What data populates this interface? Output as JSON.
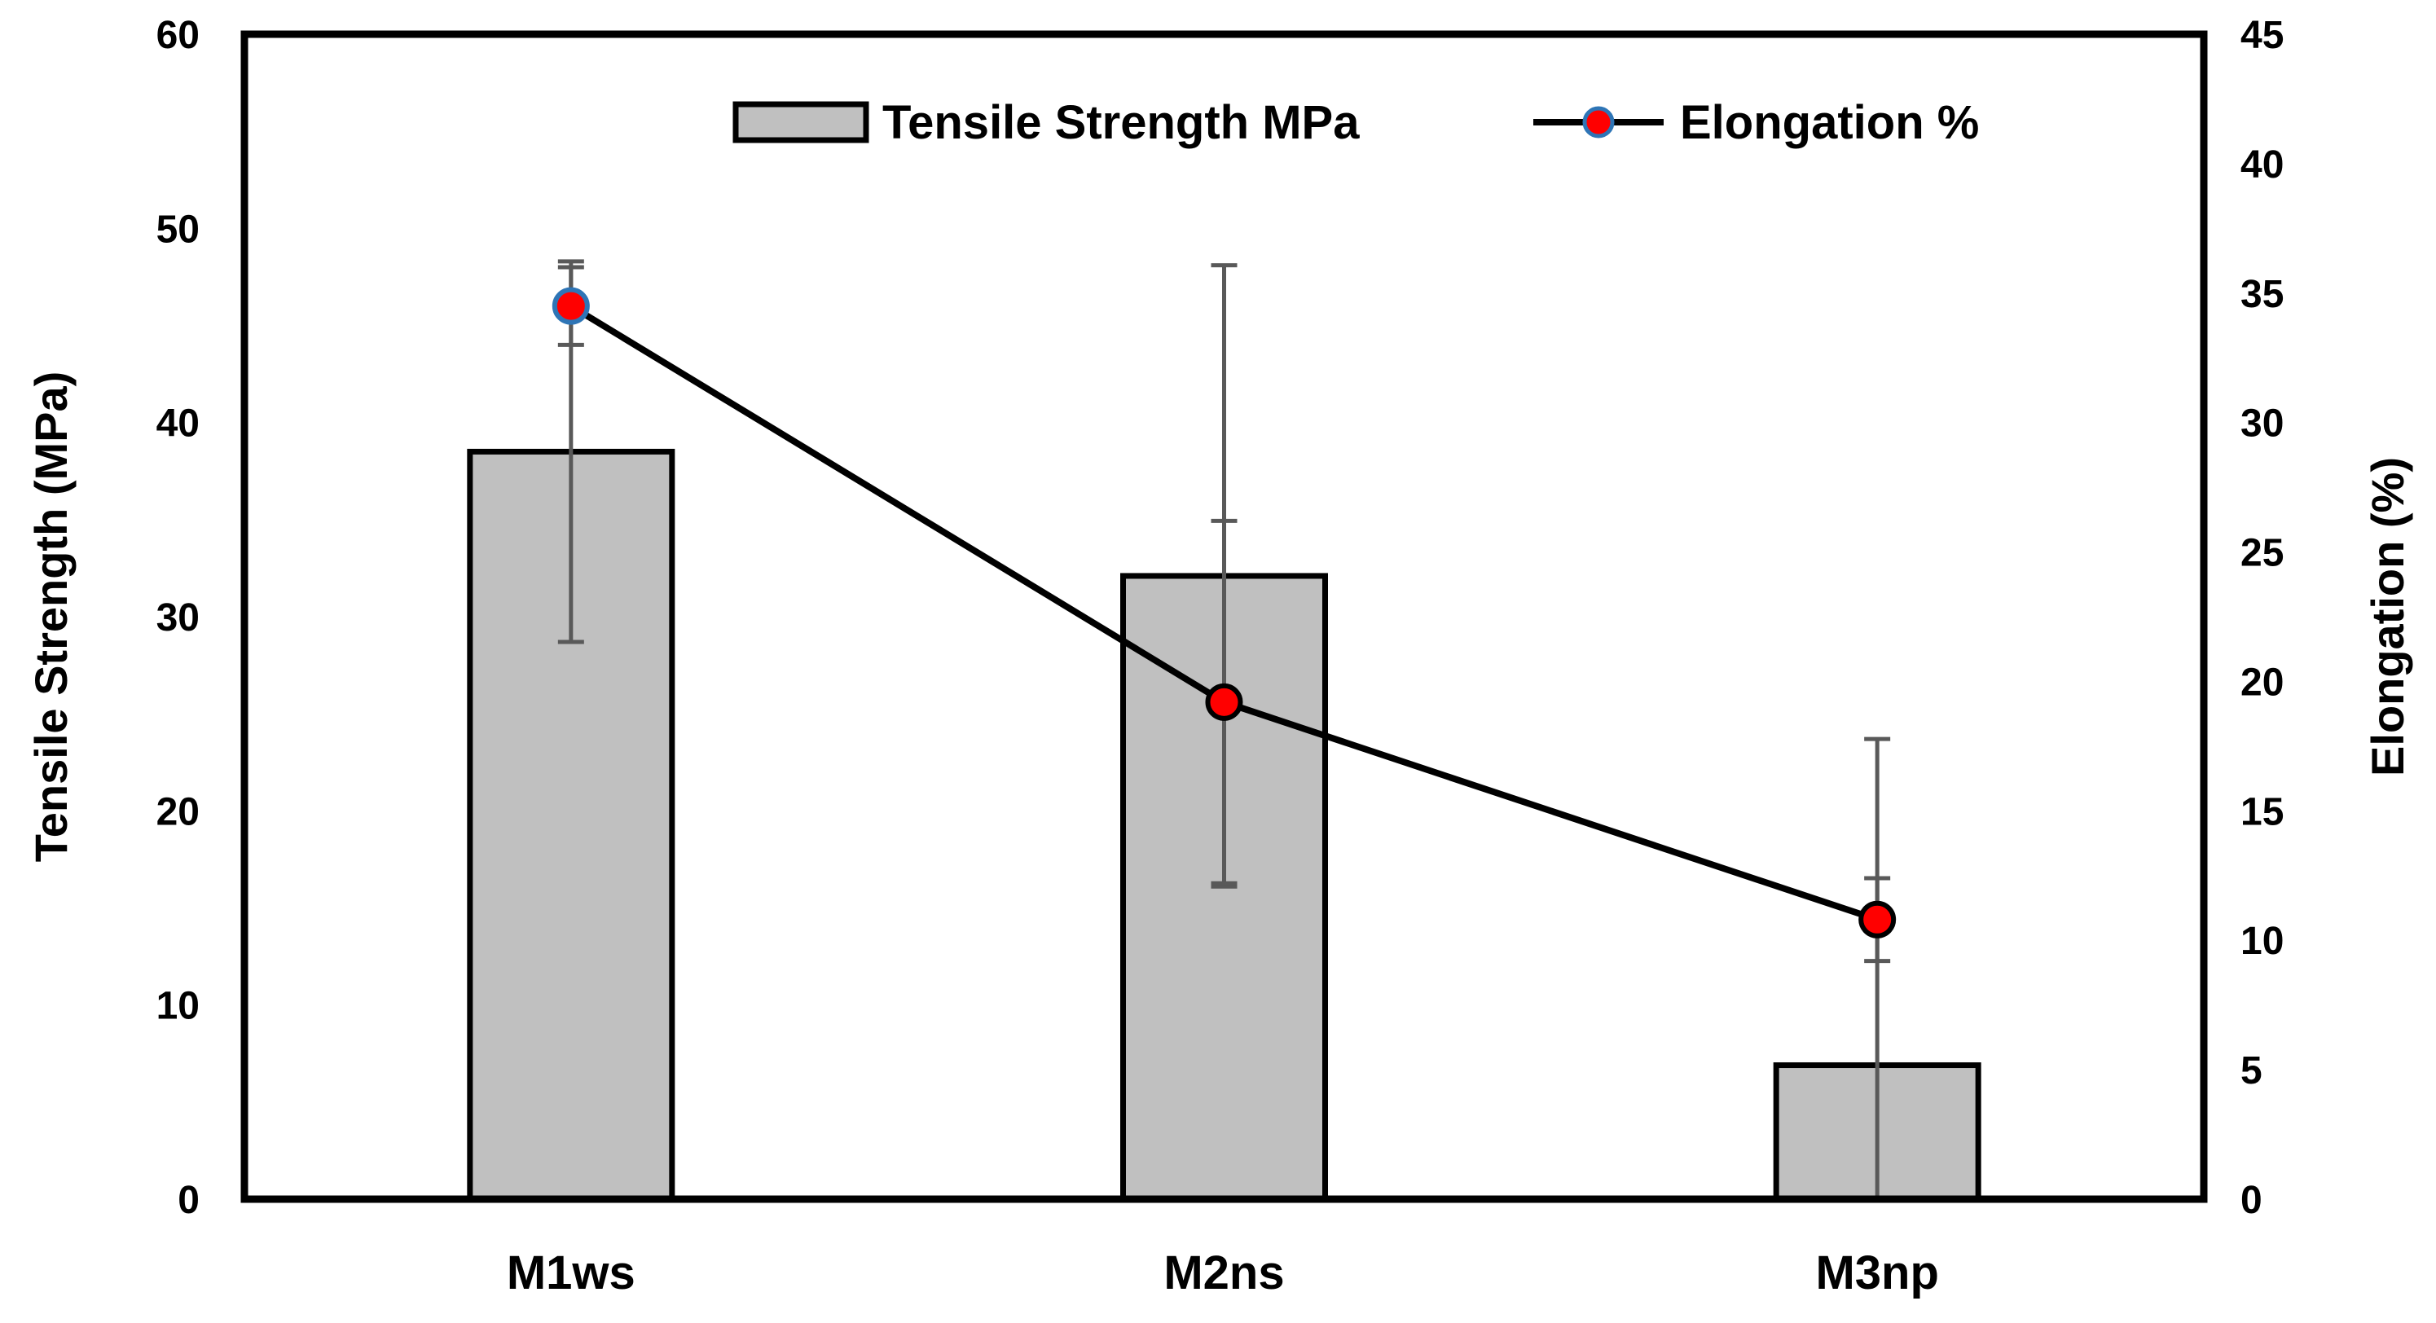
{
  "chart_data": {
    "type": "bar+line",
    "categories": [
      "M1ws",
      "M2ns",
      "M3np"
    ],
    "series": [
      {
        "name": "Tensile Strength MPa",
        "type": "bar",
        "axis": "left",
        "values": [
          38.5,
          32.1,
          6.9
        ],
        "error": [
          9.8,
          16.0,
          16.8
        ],
        "fill": "#c0c0c0",
        "stroke": "#000000"
      },
      {
        "name": "Elongation %",
        "type": "line",
        "axis": "right",
        "values": [
          34.5,
          19.2,
          10.8
        ],
        "error": [
          1.5,
          7.0,
          1.6
        ],
        "marker_fill": "#ff0000",
        "marker_stroke_first": "#2e75b6",
        "marker_stroke": "#000000",
        "line_color": "#000000"
      }
    ],
    "y_left": {
      "label": "Tensile Strength (MPa)",
      "lim": [
        0,
        60
      ],
      "ticks": [
        "0",
        "10",
        "20",
        "30",
        "40",
        "50",
        "60"
      ]
    },
    "y_right": {
      "label": "Elongation (%)",
      "lim": [
        0,
        45
      ],
      "ticks": [
        "0",
        "5",
        "10",
        "15",
        "20",
        "25",
        "30",
        "35",
        "40",
        "45"
      ]
    },
    "legend_position": "top",
    "grid": false,
    "errorbar_color": "#595959"
  }
}
